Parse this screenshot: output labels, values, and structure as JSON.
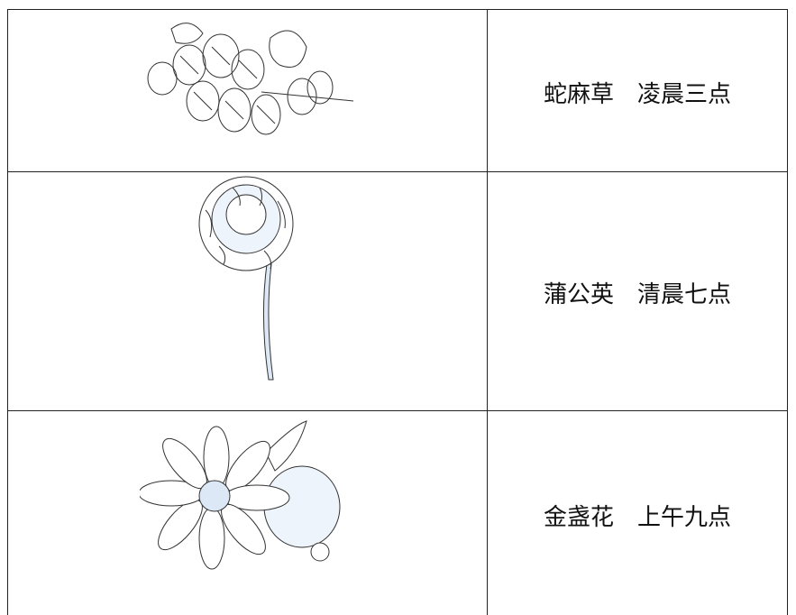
{
  "table": {
    "rows": [
      {
        "flower": "蛇麻草",
        "time": "凌晨三点"
      },
      {
        "flower": "蒲公英",
        "time": "清晨七点"
      },
      {
        "flower": "金盏花",
        "time": "上午九点"
      }
    ]
  }
}
